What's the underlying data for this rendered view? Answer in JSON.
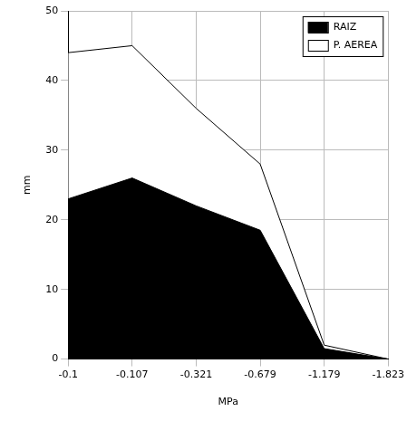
{
  "chart_data": {
    "type": "area",
    "stacked": true,
    "x_label": "MPa",
    "y_label": "mm",
    "categories": [
      "-0.1",
      "-0.107",
      "-0.321",
      "-0.679",
      "-1.179",
      "-1.823"
    ],
    "series": [
      {
        "name": "RAIZ",
        "color": "#000000",
        "values": [
          23,
          26,
          22,
          18.5,
          1.5,
          0
        ]
      },
      {
        "name": "P. AEREA",
        "color": "#ffffff",
        "values": [
          21,
          19,
          14,
          9.5,
          0.5,
          0
        ]
      }
    ],
    "ylim": [
      0,
      50
    ],
    "yticks": [
      0,
      10,
      20,
      30,
      40,
      50
    ],
    "grid": true,
    "legend": "upper right"
  }
}
